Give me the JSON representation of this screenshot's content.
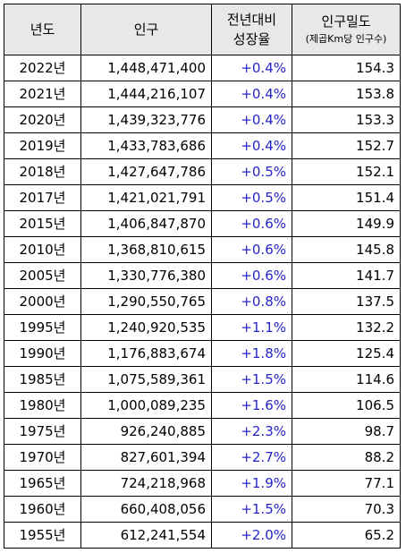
{
  "table": {
    "headers": {
      "year": "년도",
      "population": "인구",
      "growth_line1": "전년대비",
      "growth_line2": "성장율",
      "density": "인구밀도",
      "density_unit": "(제곱Km당 인구수)"
    },
    "rows": [
      {
        "year": "2022년",
        "population": "1,448,471,400",
        "growth": "+0.4%",
        "density": "154.3"
      },
      {
        "year": "2021년",
        "population": "1,444,216,107",
        "growth": "+0.4%",
        "density": "153.8"
      },
      {
        "year": "2020년",
        "population": "1,439,323,776",
        "growth": "+0.4%",
        "density": "153.3"
      },
      {
        "year": "2019년",
        "population": "1,433,783,686",
        "growth": "+0.4%",
        "density": "152.7"
      },
      {
        "year": "2018년",
        "population": "1,427,647,786",
        "growth": "+0.5%",
        "density": "152.1"
      },
      {
        "year": "2017년",
        "population": "1,421,021,791",
        "growth": "+0.5%",
        "density": "151.4"
      },
      {
        "year": "2015년",
        "population": "1,406,847,870",
        "growth": "+0.6%",
        "density": "149.9"
      },
      {
        "year": "2010년",
        "population": "1,368,810,615",
        "growth": "+0.6%",
        "density": "145.8"
      },
      {
        "year": "2005년",
        "population": "1,330,776,380",
        "growth": "+0.6%",
        "density": "141.7"
      },
      {
        "year": "2000년",
        "population": "1,290,550,765",
        "growth": "+0.8%",
        "density": "137.5"
      },
      {
        "year": "1995년",
        "population": "1,240,920,535",
        "growth": "+1.1%",
        "density": "132.2"
      },
      {
        "year": "1990년",
        "population": "1,176,883,674",
        "growth": "+1.8%",
        "density": "125.4"
      },
      {
        "year": "1985년",
        "population": "1,075,589,361",
        "growth": "+1.5%",
        "density": "114.6"
      },
      {
        "year": "1980년",
        "population": "1,000,089,235",
        "growth": "+1.6%",
        "density": "106.5"
      },
      {
        "year": "1975년",
        "population": "926,240,885",
        "growth": "+2.3%",
        "density": "98.7"
      },
      {
        "year": "1970년",
        "population": "827,601,394",
        "growth": "+2.7%",
        "density": "88.2"
      },
      {
        "year": "1965년",
        "population": "724,218,968",
        "growth": "+1.9%",
        "density": "77.1"
      },
      {
        "year": "1960년",
        "population": "660,408,056",
        "growth": "+1.5%",
        "density": "70.3"
      },
      {
        "year": "1955년",
        "population": "612,241,554",
        "growth": "+2.0%",
        "density": "65.2"
      }
    ],
    "colors": {
      "header_bg": "#e8e8e8",
      "border": "#000000",
      "growth_text": "#2424c8"
    }
  }
}
